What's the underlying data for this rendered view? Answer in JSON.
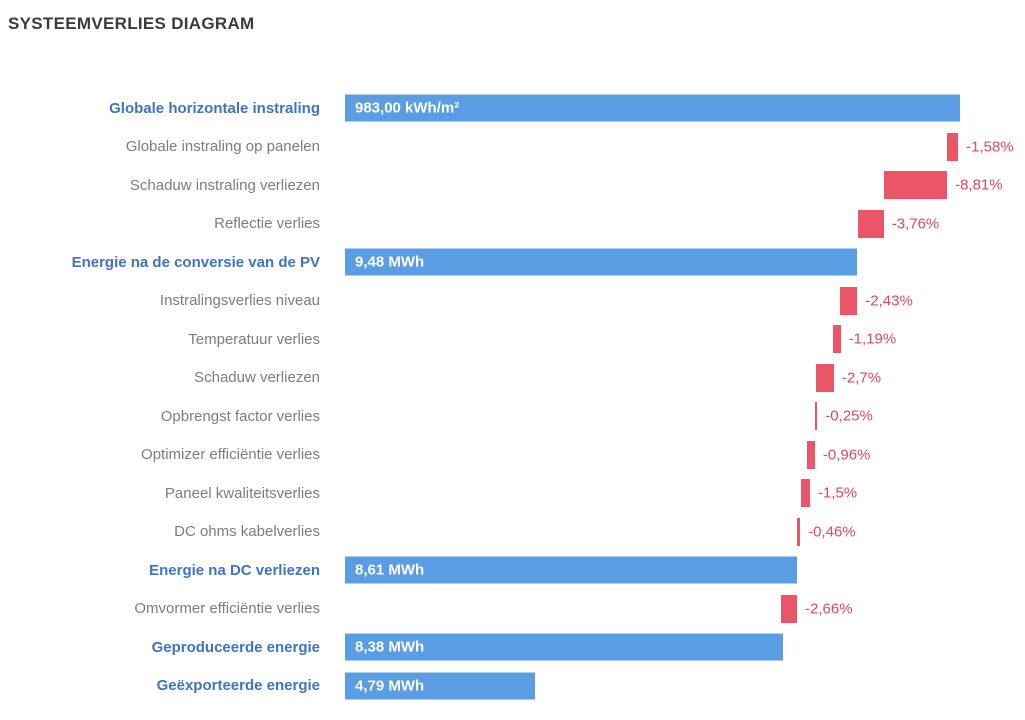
{
  "title": "SYSTEEMVERLIES DIAGRAM",
  "colors": {
    "value_bar": "#5B9DE2",
    "loss_bar": "#EA5667",
    "emphasis_label": "#3F74BF",
    "regular_label": "#7d7d7d",
    "loss_text": "#E0485E",
    "bar_value_text": "#FFFFFF",
    "title_text": "#3B3B3B",
    "background": "#FFFFFF"
  },
  "chart_data": {
    "type": "bar",
    "subtype": "horizontal_waterfall",
    "title": "SYSTEEMVERLIES DIAGRAM",
    "grid": false,
    "legend": false,
    "axis_labels_position": "left",
    "rows": [
      {
        "label": "Globale horizontale instraling",
        "kind": "value",
        "value": 983.0,
        "unit": "kWh/m²",
        "display": "983,00 kWh/m²",
        "emphasis": true,
        "bar": {
          "start": 0,
          "end": 100
        }
      },
      {
        "label": "Globale instraling op panelen",
        "kind": "loss",
        "value": -1.58,
        "unit": "%",
        "display": "-1,58%",
        "emphasis": false,
        "bar": {
          "start": 97.9,
          "end": 99.7
        }
      },
      {
        "label": "Schaduw instraling verliezen",
        "kind": "loss",
        "value": -8.81,
        "unit": "%",
        "display": "-8,81%",
        "emphasis": false,
        "bar": {
          "start": 87.6,
          "end": 97.9
        }
      },
      {
        "label": "Reflectie verlies",
        "kind": "loss",
        "value": -3.76,
        "unit": "%",
        "display": "-3,76%",
        "emphasis": false,
        "bar": {
          "start": 83.4,
          "end": 87.6
        }
      },
      {
        "label": "Energie na de conversie van de PV",
        "kind": "value",
        "value": 9.48,
        "unit": "MWh",
        "display": "9,48 MWh",
        "emphasis": true,
        "bar": {
          "start": 0,
          "end": 83.3
        }
      },
      {
        "label": "Instralingsverlies niveau",
        "kind": "loss",
        "value": -2.43,
        "unit": "%",
        "display": "-2,43%",
        "emphasis": false,
        "bar": {
          "start": 80.5,
          "end": 83.3
        }
      },
      {
        "label": "Temperatuur verlies",
        "kind": "loss",
        "value": -1.19,
        "unit": "%",
        "display": "-1,19%",
        "emphasis": false,
        "bar": {
          "start": 79.3,
          "end": 80.6
        }
      },
      {
        "label": "Schaduw verliezen",
        "kind": "loss",
        "value": -2.7,
        "unit": "%",
        "display": "-2,7%",
        "emphasis": false,
        "bar": {
          "start": 76.6,
          "end": 79.5
        }
      },
      {
        "label": "Opbrengst factor verlies",
        "kind": "loss",
        "value": -0.25,
        "unit": "%",
        "display": "-0,25%",
        "emphasis": false,
        "bar": {
          "start": 76.4,
          "end": 76.8
        }
      },
      {
        "label": "Optimizer efficiëntie verlies",
        "kind": "loss",
        "value": -0.96,
        "unit": "%",
        "display": "-0,96%",
        "emphasis": false,
        "bar": {
          "start": 75.2,
          "end": 76.4
        }
      },
      {
        "label": "Paneel kwaliteitsverlies",
        "kind": "loss",
        "value": -1.5,
        "unit": "%",
        "display": "-1,5%",
        "emphasis": false,
        "bar": {
          "start": 74.2,
          "end": 75.6
        }
      },
      {
        "label": "DC ohms kabelverlies",
        "kind": "loss",
        "value": -0.46,
        "unit": "%",
        "display": "-0,46%",
        "emphasis": false,
        "bar": {
          "start": 73.5,
          "end": 74.0
        }
      },
      {
        "label": "Energie na DC verliezen",
        "kind": "value",
        "value": 8.61,
        "unit": "MWh",
        "display": "8,61 MWh",
        "emphasis": true,
        "bar": {
          "start": 0,
          "end": 73.5
        }
      },
      {
        "label": "Omvormer efficiëntie verlies",
        "kind": "loss",
        "value": -2.66,
        "unit": "%",
        "display": "-2,66%",
        "emphasis": false,
        "bar": {
          "start": 70.9,
          "end": 73.5
        }
      },
      {
        "label": "Geproduceerde energie",
        "kind": "value",
        "value": 8.38,
        "unit": "MWh",
        "display": "8,38 MWh",
        "emphasis": true,
        "bar": {
          "start": 0,
          "end": 71.2
        }
      },
      {
        "label": "Geëxporteerde energie",
        "kind": "value",
        "value": 4.79,
        "unit": "MWh",
        "display": "4,79 MWh",
        "emphasis": true,
        "bar": {
          "start": 0,
          "end": 30.9
        }
      }
    ]
  }
}
